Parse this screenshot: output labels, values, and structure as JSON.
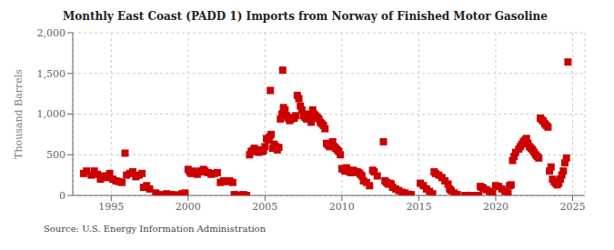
{
  "chart_data": {
    "type": "scatter",
    "title": "Monthly East Coast (PADD 1) Imports from Norway of Finished Motor Gasoline",
    "ylabel": "Thousand Barrels",
    "annotations": [
      "Source: U.S. Energy Information Administration"
    ],
    "color": "#cc0000",
    "marker": "square",
    "grid": true,
    "xlim": [
      1992.5,
      2025.8
    ],
    "xticks": [
      1995,
      2000,
      2005,
      2010,
      2015,
      2020,
      2025
    ],
    "ylim": [
      0,
      2000
    ],
    "yticks": [
      0,
      500,
      {
        "value": 1000,
        "label": "1,000"
      },
      {
        "value": 1500,
        "label": "1,500"
      },
      {
        "value": 2000,
        "label": "2,000"
      }
    ],
    "x": [
      1993.2,
      1993.4,
      1993.7,
      1993.9,
      1994.1,
      1994.3,
      1994.5,
      1994.7,
      1994.9,
      1995.1,
      1995.3,
      1995.5,
      1995.7,
      1995.9,
      1996.0,
      1996.2,
      1996.4,
      1996.6,
      1996.8,
      1997.0,
      1997.1,
      1997.3,
      1997.5,
      1997.9,
      1998.1,
      1998.3,
      1998.6,
      1998.9,
      1999.0,
      1999.2,
      1999.4,
      1999.6,
      1999.8,
      2000.0,
      2000.1,
      2000.2,
      2000.3,
      2000.5,
      2000.6,
      2000.8,
      2000.9,
      2001.0,
      2001.1,
      2001.3,
      2001.5,
      2001.7,
      2001.9,
      2002.1,
      2002.3,
      2002.5,
      2002.7,
      2002.9,
      2003.0,
      2003.2,
      2003.4,
      2003.6,
      2003.8,
      2004.0,
      2004.1,
      2004.2,
      2004.3,
      2004.4,
      2004.5,
      2004.6,
      2004.7,
      2004.8,
      2004.9,
      2005.0,
      2005.1,
      2005.2,
      2005.3,
      2005.35,
      2005.4,
      2005.5,
      2005.6,
      2005.7,
      2005.8,
      2005.9,
      2006.0,
      2006.1,
      2006.15,
      2006.2,
      2006.3,
      2006.4,
      2006.5,
      2006.6,
      2006.7,
      2006.8,
      2006.9,
      2007.0,
      2007.1,
      2007.2,
      2007.3,
      2007.4,
      2007.5,
      2007.6,
      2007.7,
      2007.8,
      2007.9,
      2008.0,
      2008.1,
      2008.2,
      2008.3,
      2008.4,
      2008.5,
      2008.6,
      2008.7,
      2008.8,
      2008.9,
      2009.0,
      2009.1,
      2009.2,
      2009.3,
      2009.4,
      2009.5,
      2009.6,
      2009.7,
      2009.8,
      2009.9,
      2010.0,
      2010.1,
      2010.2,
      2010.3,
      2010.4,
      2010.5,
      2010.6,
      2010.7,
      2010.8,
      2011.0,
      2011.1,
      2011.2,
      2011.3,
      2011.4,
      2011.6,
      2011.8,
      2012.0,
      2012.1,
      2012.3,
      2012.7,
      2012.8,
      2012.9,
      2013.0,
      2013.1,
      2013.2,
      2013.3,
      2013.5,
      2013.7,
      2013.9,
      2014.1,
      2014.3,
      2014.5,
      2015.1,
      2015.3,
      2015.5,
      2015.7,
      2015.9,
      2016.0,
      2016.1,
      2016.3,
      2016.5,
      2016.7,
      2016.9,
      2017.0,
      2017.1,
      2017.3,
      2017.5,
      2018.0,
      2018.3,
      2018.6,
      2018.9,
      2019.0,
      2019.1,
      2019.2,
      2019.4,
      2019.6,
      2019.8,
      2020.0,
      2020.2,
      2020.4,
      2020.6,
      2020.8,
      2020.9,
      2021.0,
      2021.1,
      2021.2,
      2021.3,
      2021.5,
      2021.6,
      2021.7,
      2021.8,
      2021.9,
      2022.0,
      2022.1,
      2022.2,
      2022.3,
      2022.4,
      2022.5,
      2022.6,
      2022.7,
      2022.8,
      2022.9,
      2023.0,
      2023.1,
      2023.2,
      2023.3,
      2023.4,
      2023.5,
      2023.6,
      2023.7,
      2023.8,
      2023.9,
      2024.0,
      2024.1,
      2024.2,
      2024.3,
      2024.4,
      2024.5,
      2024.6,
      2024.7
    ],
    "values": [
      270,
      300,
      250,
      300,
      260,
      200,
      240,
      220,
      270,
      200,
      180,
      170,
      160,
      520,
      250,
      270,
      290,
      230,
      250,
      270,
      100,
      120,
      80,
      30,
      10,
      5,
      20,
      10,
      5,
      3,
      5,
      20,
      30,
      320,
      290,
      270,
      300,
      280,
      260,
      300,
      290,
      320,
      300,
      280,
      260,
      270,
      280,
      160,
      180,
      170,
      180,
      160,
      10,
      5,
      0,
      10,
      0,
      500,
      540,
      550,
      580,
      560,
      540,
      530,
      560,
      540,
      550,
      600,
      700,
      680,
      720,
      1290,
      750,
      580,
      630,
      600,
      560,
      590,
      940,
      1000,
      1540,
      1080,
      1050,
      980,
      950,
      920,
      940,
      960,
      950,
      980,
      1230,
      1190,
      1100,
      1050,
      980,
      960,
      940,
      1000,
      980,
      900,
      1050,
      1000,
      980,
      960,
      940,
      900,
      880,
      860,
      820,
      640,
      620,
      600,
      640,
      660,
      600,
      580,
      560,
      540,
      500,
      330,
      320,
      300,
      340,
      310,
      290,
      280,
      310,
      300,
      290,
      280,
      260,
      240,
      180,
      160,
      120,
      310,
      290,
      240,
      660,
      180,
      160,
      140,
      150,
      140,
      100,
      80,
      60,
      40,
      30,
      15,
      10,
      150,
      120,
      80,
      50,
      20,
      290,
      270,
      250,
      220,
      180,
      140,
      80,
      60,
      30,
      10,
      0,
      0,
      0,
      0,
      110,
      100,
      90,
      70,
      50,
      30,
      120,
      110,
      80,
      50,
      30,
      120,
      130,
      430,
      480,
      530,
      570,
      600,
      630,
      660,
      680,
      700,
      640,
      600,
      580,
      560,
      530,
      500,
      480,
      460,
      950,
      930,
      910,
      880,
      860,
      840,
      300,
      350,
      200,
      170,
      150,
      130,
      150,
      200,
      250,
      300,
      400,
      460,
      1640
    ]
  }
}
